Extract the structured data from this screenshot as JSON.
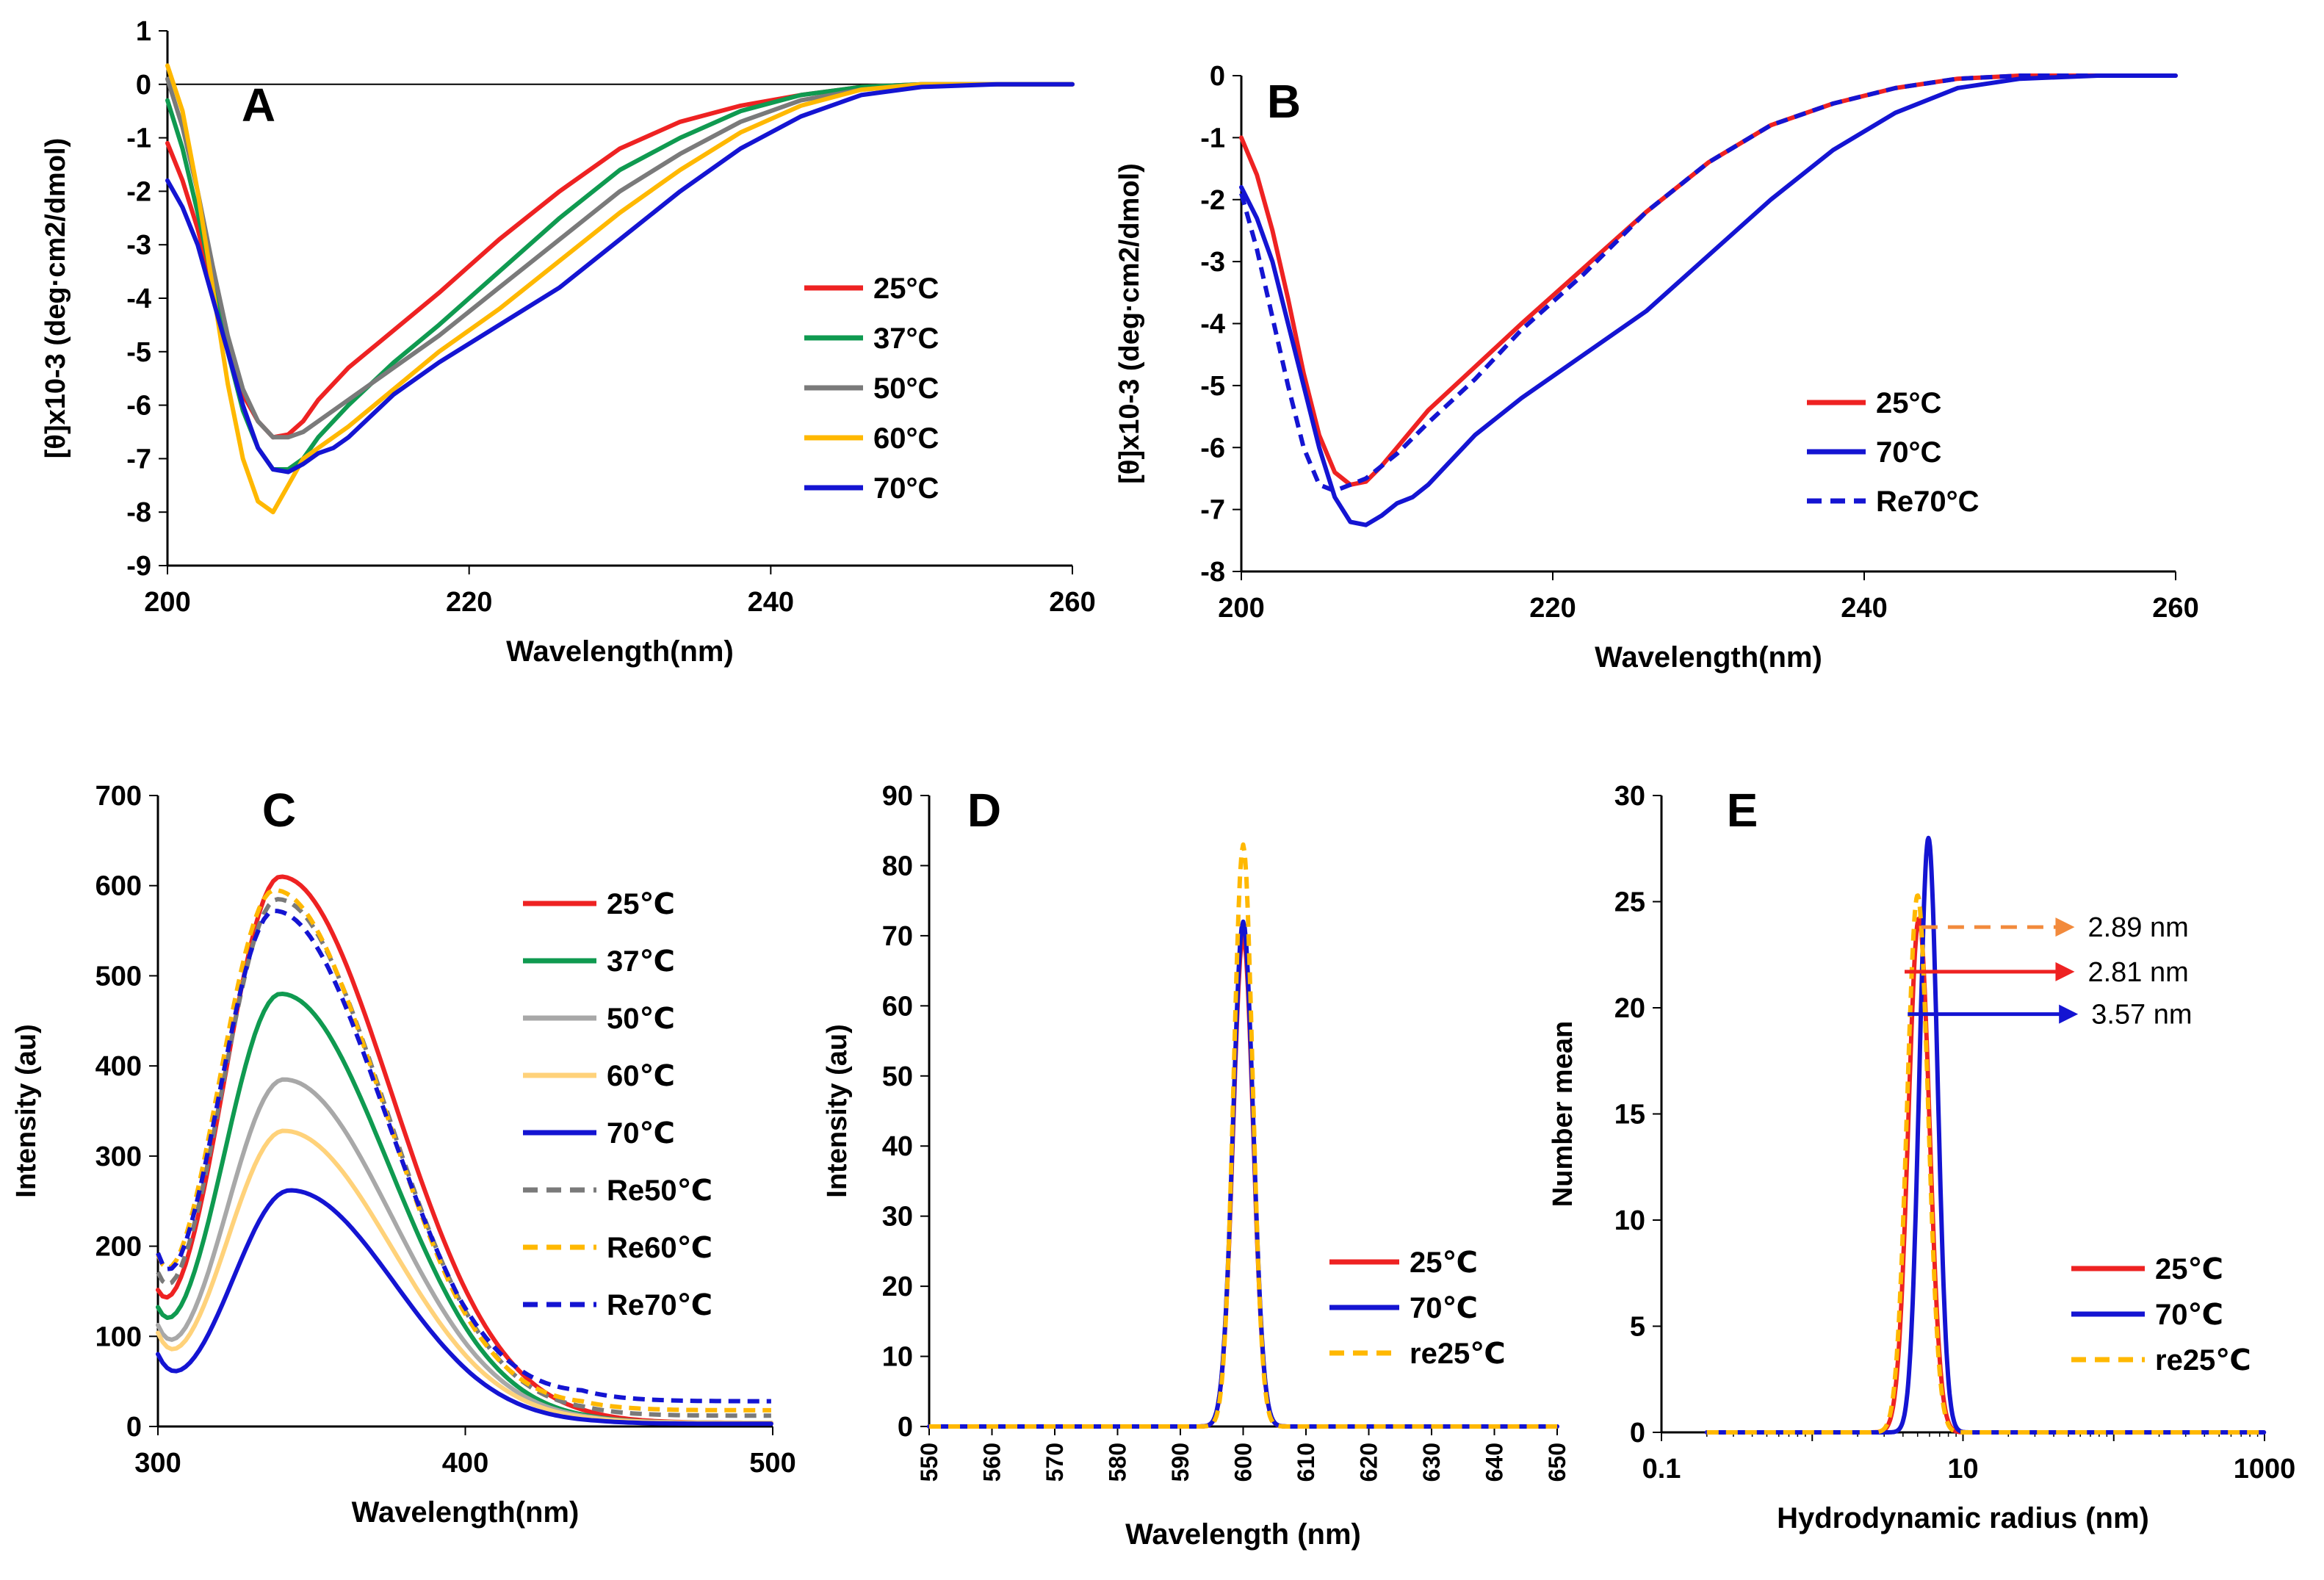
{
  "chart_data": [
    {
      "panel": "A",
      "type": "line",
      "title": "A",
      "xlabel": "Wavelength(nm)",
      "ylabel": "[θ]x10-3 (deg·cm2/dmol)",
      "xlim": [
        200,
        260
      ],
      "ylim": [
        -9,
        1
      ],
      "xticks": [
        200,
        220,
        240,
        260
      ],
      "yticks": [
        -9,
        -8,
        -7,
        -6,
        -5,
        -4,
        -3,
        -2,
        -1,
        0,
        1
      ],
      "legend_position": "center-right",
      "series": [
        {
          "name": "25°C",
          "color": "#ee2222",
          "dash": "solid",
          "x": [
            200,
            201,
            202,
            203,
            204,
            205,
            206,
            207,
            208,
            209,
            210,
            212,
            215,
            218,
            222,
            226,
            230,
            234,
            238,
            242,
            246,
            250,
            255,
            260
          ],
          "y": [
            -1.1,
            -1.8,
            -2.7,
            -3.8,
            -4.9,
            -5.8,
            -6.3,
            -6.6,
            -6.55,
            -6.3,
            -5.9,
            -5.3,
            -4.6,
            -3.9,
            -2.9,
            -2.0,
            -1.2,
            -0.7,
            -0.4,
            -0.2,
            -0.05,
            0,
            0,
            0
          ]
        },
        {
          "name": "37°C",
          "color": "#0f9a50",
          "dash": "solid",
          "x": [
            200,
            201,
            202,
            203,
            204,
            205,
            206,
            207,
            208,
            209,
            210,
            212,
            215,
            218,
            222,
            226,
            230,
            234,
            238,
            242,
            246,
            250,
            255,
            260
          ],
          "y": [
            -0.3,
            -1.2,
            -2.4,
            -3.7,
            -5.0,
            -6.1,
            -6.8,
            -7.2,
            -7.2,
            -7.0,
            -6.6,
            -6.0,
            -5.2,
            -4.5,
            -3.5,
            -2.5,
            -1.6,
            -1.0,
            -0.5,
            -0.2,
            -0.05,
            0,
            0,
            0
          ]
        },
        {
          "name": "50°C",
          "color": "#7a7a7a",
          "dash": "solid",
          "x": [
            200,
            201,
            202,
            203,
            204,
            205,
            206,
            207,
            208,
            209,
            210,
            212,
            215,
            218,
            222,
            226,
            230,
            234,
            238,
            242,
            246,
            250,
            255,
            260
          ],
          "y": [
            0.1,
            -0.8,
            -2.0,
            -3.4,
            -4.7,
            -5.7,
            -6.3,
            -6.6,
            -6.6,
            -6.5,
            -6.3,
            -5.9,
            -5.3,
            -4.7,
            -3.8,
            -2.9,
            -2.0,
            -1.3,
            -0.7,
            -0.3,
            -0.1,
            0,
            0,
            0
          ]
        },
        {
          "name": "60°C",
          "color": "#ffb800",
          "dash": "solid",
          "x": [
            200,
            201,
            202,
            203,
            204,
            205,
            206,
            207,
            208,
            209,
            210,
            212,
            215,
            218,
            222,
            226,
            230,
            234,
            238,
            242,
            246,
            250,
            255,
            260
          ],
          "y": [
            0.35,
            -0.5,
            -2.0,
            -3.8,
            -5.6,
            -7.0,
            -7.8,
            -8.0,
            -7.5,
            -7.0,
            -6.8,
            -6.4,
            -5.7,
            -5.0,
            -4.2,
            -3.3,
            -2.4,
            -1.6,
            -0.9,
            -0.4,
            -0.1,
            0,
            0,
            0
          ]
        },
        {
          "name": "70°C",
          "color": "#1414d2",
          "dash": "solid",
          "x": [
            200,
            201,
            202,
            203,
            204,
            205,
            206,
            207,
            208,
            209,
            210,
            211,
            212,
            215,
            218,
            222,
            226,
            230,
            234,
            238,
            242,
            246,
            250,
            255,
            260
          ],
          "y": [
            -1.8,
            -2.3,
            -3.0,
            -4.0,
            -5.0,
            -6.0,
            -6.8,
            -7.2,
            -7.25,
            -7.1,
            -6.9,
            -6.8,
            -6.6,
            -5.8,
            -5.2,
            -4.5,
            -3.8,
            -2.9,
            -2.0,
            -1.2,
            -0.6,
            -0.2,
            -0.05,
            0,
            0
          ]
        }
      ]
    },
    {
      "panel": "B",
      "type": "line",
      "title": "B",
      "xlabel": "Wavelength(nm)",
      "ylabel": "[θ]x10-3 (deg·cm2/dmol)",
      "xlim": [
        200,
        260
      ],
      "ylim": [
        -8,
        0
      ],
      "xticks": [
        200,
        220,
        240,
        260
      ],
      "yticks": [
        -8,
        -7,
        -6,
        -5,
        -4,
        -3,
        -2,
        -1,
        0
      ],
      "legend_position": "lower-right",
      "series": [
        {
          "name": "25°C",
          "color": "#ee2222",
          "dash": "solid",
          "x": [
            200,
            201,
            202,
            203,
            204,
            205,
            206,
            207,
            208,
            209,
            210,
            212,
            215,
            218,
            222,
            226,
            230,
            234,
            238,
            242,
            246,
            250,
            255,
            260
          ],
          "y": [
            -1.0,
            -1.6,
            -2.5,
            -3.6,
            -4.8,
            -5.8,
            -6.4,
            -6.6,
            -6.55,
            -6.3,
            -6.0,
            -5.4,
            -4.7,
            -4.0,
            -3.1,
            -2.2,
            -1.4,
            -0.8,
            -0.45,
            -0.2,
            -0.05,
            0,
            0,
            0
          ]
        },
        {
          "name": "70°C",
          "color": "#1414d2",
          "dash": "solid",
          "x": [
            200,
            201,
            202,
            203,
            204,
            205,
            206,
            207,
            208,
            209,
            210,
            211,
            212,
            215,
            218,
            222,
            226,
            230,
            234,
            238,
            242,
            246,
            250,
            255,
            260
          ],
          "y": [
            -1.8,
            -2.3,
            -3.0,
            -4.0,
            -5.0,
            -6.0,
            -6.8,
            -7.2,
            -7.25,
            -7.1,
            -6.9,
            -6.8,
            -6.6,
            -5.8,
            -5.2,
            -4.5,
            -3.8,
            -2.9,
            -2.0,
            -1.2,
            -0.6,
            -0.2,
            -0.05,
            0,
            0
          ]
        },
        {
          "name": "Re70°C",
          "color": "#1414d2",
          "dash": "dashed",
          "x": [
            200,
            201,
            202,
            203,
            204,
            205,
            206,
            207,
            208,
            209,
            210,
            212,
            215,
            218,
            222,
            226,
            230,
            234,
            238,
            242,
            246,
            250,
            255,
            260
          ],
          "y": [
            -1.9,
            -2.8,
            -3.9,
            -5.0,
            -6.0,
            -6.6,
            -6.7,
            -6.6,
            -6.5,
            -6.3,
            -6.1,
            -5.6,
            -4.9,
            -4.1,
            -3.2,
            -2.2,
            -1.4,
            -0.8,
            -0.45,
            -0.2,
            -0.05,
            0,
            0,
            0
          ]
        }
      ]
    },
    {
      "panel": "C",
      "type": "line",
      "title": "C",
      "xlabel": "Wavelength(nm)",
      "ylabel": "Intensity (au)",
      "xlim": [
        300,
        500
      ],
      "ylim": [
        0,
        700
      ],
      "xticks": [
        300,
        400,
        500
      ],
      "yticks": [
        0,
        100,
        200,
        300,
        400,
        500,
        600,
        700
      ],
      "legend_position": "right",
      "series": [
        {
          "name": "25℃",
          "color": "#ee2222",
          "dash": "solid",
          "peak_x": 340,
          "peak": 610,
          "start": 85,
          "sigma_l": 19,
          "sigma_r": 36,
          "tail": 4
        },
        {
          "name": "37℃",
          "color": "#0f9a50",
          "dash": "solid",
          "peak_x": 340,
          "peak": 480,
          "start": 80,
          "sigma_l": 19,
          "sigma_r": 35,
          "tail": 4
        },
        {
          "name": "50℃",
          "color": "#a8a8a8",
          "dash": "solid",
          "peak_x": 341,
          "peak": 385,
          "start": 75,
          "sigma_l": 19,
          "sigma_r": 35,
          "tail": 4
        },
        {
          "name": "60℃",
          "color": "#ffd27a",
          "dash": "solid",
          "peak_x": 341,
          "peak": 328,
          "start": 72,
          "sigma_l": 19,
          "sigma_r": 35,
          "tail": 4
        },
        {
          "name": "70℃",
          "color": "#1414d2",
          "dash": "solid",
          "peak_x": 343,
          "peak": 262,
          "start": 60,
          "sigma_l": 19,
          "sigma_r": 34,
          "tail": 3
        },
        {
          "name": "Re50℃",
          "color": "#7a7a7a",
          "dash": "dashed",
          "peak_x": 339,
          "peak": 585,
          "start": 100,
          "sigma_l": 19,
          "sigma_r": 35,
          "tail": 12
        },
        {
          "name": "Re60℃",
          "color": "#ffb800",
          "dash": "dashed",
          "peak_x": 338,
          "peak": 595,
          "start": 110,
          "sigma_l": 19,
          "sigma_r": 35,
          "tail": 18
        },
        {
          "name": "Re70℃",
          "color": "#1414d2",
          "dash": "dashed",
          "peak_x": 338,
          "peak": 572,
          "start": 115,
          "sigma_l": 19,
          "sigma_r": 36,
          "tail": 28
        }
      ]
    },
    {
      "panel": "D",
      "type": "line",
      "title": "D",
      "xlabel": "Wavelength (nm)",
      "ylabel": "Intensity (au)",
      "xlim": [
        550,
        650
      ],
      "ylim": [
        0,
        90
      ],
      "xticks": [
        550,
        560,
        570,
        580,
        590,
        600,
        610,
        620,
        630,
        640,
        650
      ],
      "yticks": [
        0,
        10,
        20,
        30,
        40,
        50,
        60,
        70,
        80,
        90
      ],
      "legend_position": "lower-right",
      "series": [
        {
          "name": "25℃",
          "color": "#ee2222",
          "dash": "solid",
          "peak_x": 600,
          "peak": 70,
          "sigma": 1.6
        },
        {
          "name": "70℃",
          "color": "#1414d2",
          "dash": "solid",
          "peak_x": 600,
          "peak": 72,
          "sigma": 1.6
        },
        {
          "name": "re25℃",
          "color": "#ffb800",
          "dash": "dashed",
          "peak_x": 600,
          "peak": 83,
          "sigma": 1.5
        }
      ]
    },
    {
      "panel": "E",
      "type": "line",
      "title": "E",
      "xlabel": "Hydrodynamic radius (nm)",
      "ylabel": "Number mean",
      "xscale": "log",
      "xlim": [
        0.1,
        1000
      ],
      "ylim": [
        0,
        30
      ],
      "xticks": [
        0.1,
        1,
        10,
        100,
        1000
      ],
      "xtick_labels": [
        "0.1",
        "",
        "10",
        "",
        "1000"
      ],
      "yticks": [
        0,
        5,
        10,
        15,
        20,
        25,
        30
      ],
      "legend_position": "lower-right",
      "series": [
        {
          "name": "25℃",
          "color": "#ee2222",
          "dash": "solid",
          "peak_x": 5.1,
          "peak": 24.2,
          "sigma_log": 0.07
        },
        {
          "name": "70℃",
          "color": "#1414d2",
          "dash": "solid",
          "peak_x": 5.9,
          "peak": 28.0,
          "sigma_log": 0.06
        },
        {
          "name": "re25℃",
          "color": "#ffb800",
          "dash": "dashed",
          "peak_x": 5.0,
          "peak": 25.3,
          "sigma_log": 0.07
        }
      ],
      "annotations": [
        {
          "text": "2.89 nm",
          "color": "#f28a3c",
          "dash": "dashed",
          "y": 23.8,
          "x_from": 5.3,
          "x_to": 55
        },
        {
          "text": "2.81 nm",
          "color": "#ee2222",
          "dash": "solid",
          "y": 21.7,
          "x_from": 4.1,
          "x_to": 55
        },
        {
          "text": "3.57 nm",
          "color": "#1414d2",
          "dash": "solid",
          "y": 19.7,
          "x_from": 4.3,
          "x_to": 58
        }
      ]
    }
  ]
}
